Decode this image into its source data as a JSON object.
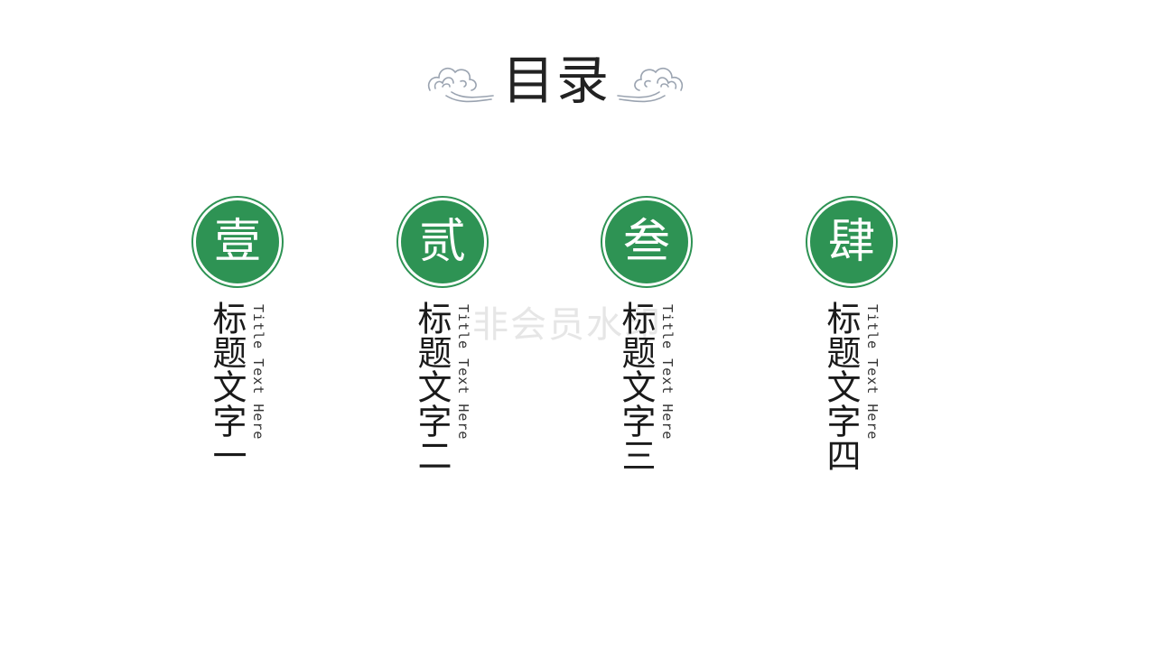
{
  "header": {
    "title": "目录"
  },
  "watermark": "非会员水印",
  "sections": [
    {
      "badge": "壹",
      "title_cn": "标题文字一",
      "title_en": "Title Text Here"
    },
    {
      "badge": "贰",
      "title_cn": "标题文字二",
      "title_en": "Title Text Here"
    },
    {
      "badge": "叁",
      "title_cn": "标题文字三",
      "title_en": "Title Text Here"
    },
    {
      "badge": "肆",
      "title_cn": "标题文字四",
      "title_en": "Title Text Here"
    }
  ],
  "colors": {
    "accent": "#2e9354",
    "text": "#222222",
    "ornament": "#9aa3b0"
  },
  "icons": {
    "ornament": "cloud-ornament-icon"
  }
}
